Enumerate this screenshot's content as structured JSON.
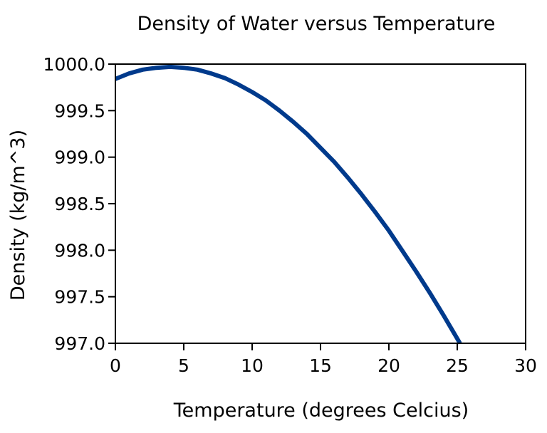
{
  "chart_data": {
    "type": "line",
    "title": "Density of Water versus Temperature",
    "xlabel": "Temperature (degrees Celcius)",
    "ylabel": "Density (kg/m^3)",
    "xlim": [
      0,
      30
    ],
    "ylim": [
      997.0,
      1000.0
    ],
    "xticks": [
      "0",
      "5",
      "10",
      "15",
      "20",
      "25",
      "30"
    ],
    "yticks": [
      "997.0",
      "997.5",
      "998.0",
      "998.5",
      "999.0",
      "999.5",
      "1000.0"
    ],
    "grid": false,
    "line_color": "#003a8c",
    "series": [
      {
        "x": [
          0,
          1,
          2,
          3,
          4,
          5,
          6,
          7,
          8,
          9,
          10,
          11,
          12,
          13,
          14,
          15,
          16,
          17,
          18,
          19,
          20,
          21,
          22,
          23,
          24,
          25,
          25.2
        ],
        "y": [
          999.84,
          999.9,
          999.94,
          999.96,
          999.97,
          999.96,
          999.94,
          999.9,
          999.85,
          999.78,
          999.7,
          999.61,
          999.5,
          999.38,
          999.25,
          999.1,
          998.95,
          998.78,
          998.6,
          998.41,
          998.21,
          997.99,
          997.77,
          997.54,
          997.3,
          997.05,
          997.0
        ]
      }
    ]
  }
}
